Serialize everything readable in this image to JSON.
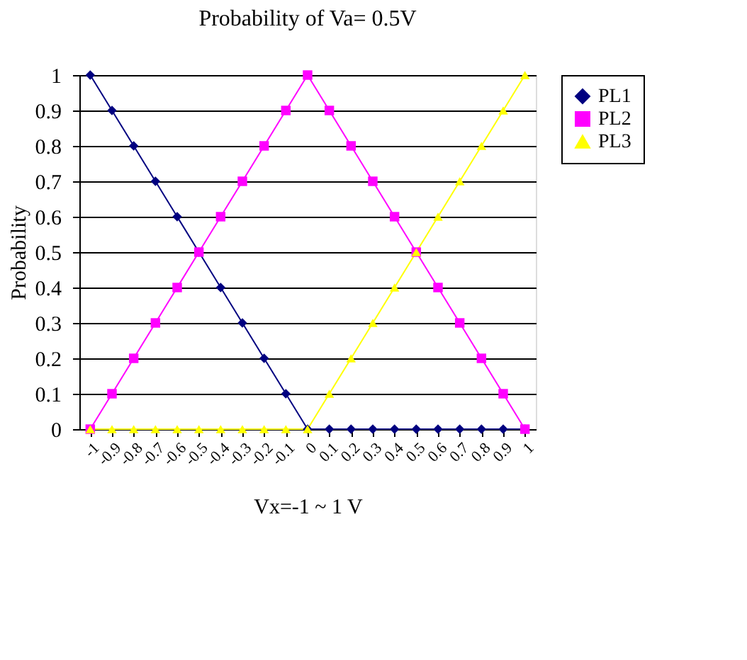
{
  "chart_data": {
    "type": "line",
    "title": "Probability of Va= 0.5V",
    "xlabel": "Vx=-1 ~ 1 V",
    "ylabel": "Probability",
    "categories": [
      "-1",
      "-0.9",
      "-0.8",
      "-0.7",
      "-0.6",
      "-0.5",
      "-0.4",
      "-0.3",
      "-0.2",
      "-0.1",
      "0",
      "0.1",
      "0.2",
      "0.3",
      "0.4",
      "0.5",
      "0.6",
      "0.7",
      "0.8",
      "0.9",
      "1"
    ],
    "series": [
      {
        "name": "PL1",
        "color": "#000080",
        "marker": "diamond",
        "values": [
          1,
          0.9,
          0.8,
          0.7,
          0.6,
          0.5,
          0.4,
          0.3,
          0.2,
          0.1,
          0,
          0,
          0,
          0,
          0,
          0,
          0,
          0,
          0,
          0,
          0
        ]
      },
      {
        "name": "PL2",
        "color": "#ff00ff",
        "marker": "square",
        "values": [
          0,
          0.1,
          0.2,
          0.3,
          0.4,
          0.5,
          0.6,
          0.7,
          0.8,
          0.9,
          1,
          0.9,
          0.8,
          0.7,
          0.6,
          0.5,
          0.4,
          0.3,
          0.2,
          0.1,
          0
        ]
      },
      {
        "name": "PL3",
        "color": "#ffff00",
        "marker": "triangle",
        "values": [
          0,
          0,
          0,
          0,
          0,
          0,
          0,
          0,
          0,
          0,
          0,
          0.1,
          0.2,
          0.3,
          0.4,
          0.5,
          0.6,
          0.7,
          0.8,
          0.9,
          1
        ]
      }
    ],
    "ylim": [
      0,
      1
    ],
    "yticks": [
      0,
      0.1,
      0.2,
      0.3,
      0.4,
      0.5,
      0.6,
      0.7,
      0.8,
      0.9,
      1
    ],
    "grid": "y",
    "legend": "right",
    "line_style": "solid"
  }
}
